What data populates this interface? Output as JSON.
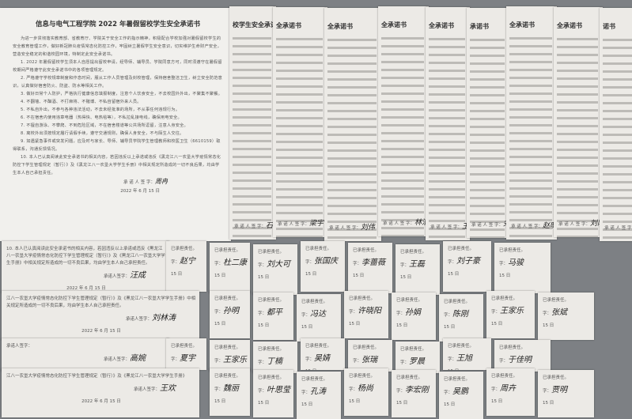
{
  "document": {
    "title": "信息与电气工程学院 2022 年暑假留校学生安全承诺书",
    "paragraphs": [
      "为进一步贯彻落实教育部、省教育厅、学院关于安全工作的指示精神，积极配合学校加强对暑假留校学生的安全教育管理工作，做好新冠肺炎疫情常态化防控工作，牢固树立暑假学生安全意识，切实维护生命财产安全，营造安全稳定的和谐校园环境，特制定此安全承诺书。",
      "1. 2022 年暑假留校学生须本人自愿提出留校申请，经导师、辅导员、学院同意方可，同时须遵守在暑假留校期间严格遵守此安全承诺书中的各项管理规定。",
      "2. 严格遵守学校规章制度和作息时间，服从工作人员管理及封校管理，保持宿舍整洁卫生，树立安全防范意识，认真做好宿舍防火、防盗、防水等相关工作。",
      "3. 做好日常个人防护，严格执行健康信息填报制度，注意个人饮食安全，不去校园外外出，不聚集不聚餐。",
      "4. 不翻墙、不酗酒、不打麻将、不赌博、不私自留宿外来人员。",
      "5. 不私自外出，不参与各种违法活动，不去未经批准的场所，不从事任何违规行为。",
      "6. 不在宿舍内使用违章电器（热得快、电热毯等），不私拉乱接电线，确保用电安全。",
      "7. 不擅自游泳、不攀爬、不到危险区域，不在宿舍楼道等公共场所逗留，注意人身安全。",
      "8. 离校外出须按规定履行请假手续，遵守交通规则，确保人身安全，不与陌生人交往。",
      "9. 如遇紧急事件或突发问题，应及时与家长、导师、辅导员学院学生管理教师和校医卫生（6610159）取得联系，沟通反馈情况。",
      "10. 本人已认真阅读此安全承诺书的相关内容，若因违反以上承诺或违反《黑龙江八一农垦大学疫情常态化防控下学生管理规定（暂行）》及《黑龙江八一农垦大学学生手册》中相关规定所造成的一切不良后果，均由学生本人自己承担责任。"
    ],
    "signature_label": "承 诺 人 签 字：",
    "signature": "周冉",
    "date": "2022 年 6 月 15 日"
  },
  "strips": [
    {
      "heading": "校学生安全承诺书",
      "signature": "石景惠"
    },
    {
      "heading": "全承诺书",
      "signature": "梁宇"
    },
    {
      "heading": "全承诺书",
      "signature": "刘伟"
    },
    {
      "heading": "全承诺书",
      "signature": "林浩"
    },
    {
      "heading": "全承诺书",
      "signature": "王力"
    },
    {
      "heading": "承诺书",
      "signature": "宋玉"
    },
    {
      "heading": "全承诺书",
      "signature": "赵明"
    },
    {
      "heading": "全承诺书",
      "signature": "刘阳"
    },
    {
      "heading": "诺书",
      "signature": "夏林"
    }
  ],
  "rows": [
    {
      "text": "10. 本人已认真阅读此安全承诺书的相关内容，若因违反以上承诺或违反《黑龙江八一农垦大学疫情常态化防控下学生管理规定（暂行）》及《黑龙江八一农垦大学学生手册》中相关规定所造成的一切不良后果，均由学生本人自己承担责任。",
      "signatures": [
        "汪成",
        "赵宁",
        "杜二康",
        "刘大可",
        "张国庆",
        "李蔷薇",
        "王磊",
        "刘子豪",
        "马骏"
      ]
    },
    {
      "text": "江八一农垦大学疫情常态化防控下学生管理规定（暂行）》及《黑龙江八一农垦大学学生手册》中相关规定所造成的一切不良后果，均由学生本人自己承担责任。",
      "signatures": [
        "刘林涛",
        "孙明",
        "都平",
        "冯达",
        "许晓阳",
        "孙娟",
        "陈刚",
        "王家乐",
        "张斌"
      ]
    },
    {
      "text": "承诺人签字：",
      "signatures": [
        "高婉",
        "夏宇",
        "王家乐",
        "丁楠",
        "吴婧",
        "张瑞",
        "罗晨",
        "王旭",
        "于佳明"
      ]
    },
    {
      "text": "江八一农垦大学疫情常态化防控下学生管理规定（暂行）》及《黑龙江八一农垦大学学生手册》",
      "signatures": [
        "王欢",
        "魏丽",
        "叶思莹",
        "孔涛",
        "杨尚",
        "李宏刚",
        "吴鹏",
        "周卉",
        "贾明"
      ]
    }
  ],
  "cell_label": "承诺人签字：",
  "cell_date": "15 日"
}
